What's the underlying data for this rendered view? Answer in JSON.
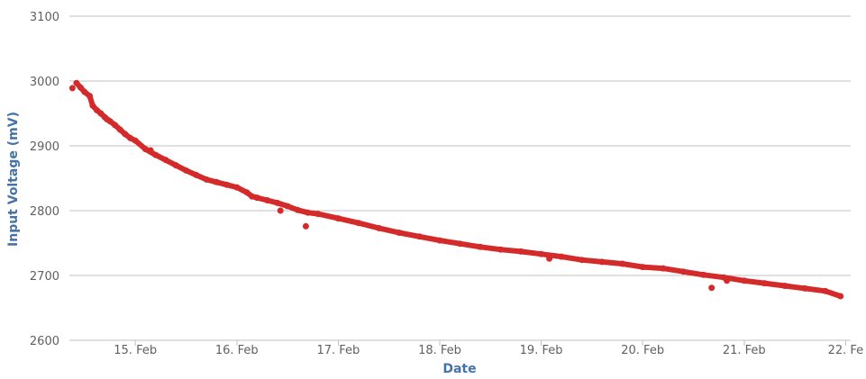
{
  "chart_data": {
    "type": "line",
    "title": "",
    "xlabel": "Date",
    "ylabel": "Input Voltage (mV)",
    "ylim": [
      2600,
      3100
    ],
    "y_ticks": [
      2600,
      2700,
      2800,
      2900,
      3000,
      3100
    ],
    "x_ticks": [
      {
        "day": 15,
        "label": "15. Feb"
      },
      {
        "day": 16,
        "label": "16. Feb"
      },
      {
        "day": 17,
        "label": "17. Feb"
      },
      {
        "day": 18,
        "label": "18. Feb"
      },
      {
        "day": 19,
        "label": "19. Feb"
      },
      {
        "day": 20,
        "label": "20. Feb"
      },
      {
        "day": 21,
        "label": "21. Feb"
      },
      {
        "day": 22,
        "label": "22. Fe"
      }
    ],
    "xlim_days": [
      14.35,
      22.05
    ],
    "grid": true,
    "colors": {
      "series": "#d42a2a",
      "grid": "#c0c0c0",
      "axis_title": "#4572A7",
      "tick_label": "#606060"
    },
    "series": [
      {
        "x_days": [
          14.42,
          14.46,
          14.5,
          14.55,
          14.58,
          14.62,
          14.66,
          14.7,
          14.75,
          14.8,
          14.85,
          14.9,
          14.95,
          15.0,
          15.1,
          15.2,
          15.3,
          15.4,
          15.5,
          15.6,
          15.7,
          15.8,
          15.9,
          16.0,
          16.1,
          16.15,
          16.2,
          16.3,
          16.4,
          16.5,
          16.6,
          16.7,
          16.8,
          17.0,
          17.2,
          17.4,
          17.6,
          17.8,
          18.0,
          18.2,
          18.4,
          18.6,
          18.8,
          19.0,
          19.2,
          19.4,
          19.6,
          19.8,
          20.0,
          20.2,
          20.4,
          20.6,
          20.8,
          21.0,
          21.2,
          21.4,
          21.6,
          21.8,
          21.95
        ],
        "y": [
          2997,
          2990,
          2983,
          2977,
          2962,
          2955,
          2950,
          2944,
          2938,
          2932,
          2925,
          2918,
          2912,
          2908,
          2895,
          2886,
          2878,
          2870,
          2862,
          2855,
          2848,
          2844,
          2840,
          2836,
          2828,
          2822,
          2820,
          2816,
          2812,
          2807,
          2801,
          2797,
          2795,
          2788,
          2781,
          2773,
          2766,
          2760,
          2754,
          2749,
          2744,
          2740,
          2737,
          2733,
          2729,
          2724,
          2721,
          2718,
          2713,
          2711,
          2706,
          2701,
          2697,
          2692,
          2688,
          2684,
          2680,
          2676,
          2668
        ]
      }
    ],
    "outliers": [
      {
        "x_day": 14.38,
        "y": 2989
      },
      {
        "x_day": 14.72,
        "y": 2941
      },
      {
        "x_day": 15.15,
        "y": 2893
      },
      {
        "x_day": 16.43,
        "y": 2800
      },
      {
        "x_day": 16.68,
        "y": 2776
      },
      {
        "x_day": 19.08,
        "y": 2726
      },
      {
        "x_day": 20.68,
        "y": 2681
      },
      {
        "x_day": 20.83,
        "y": 2692
      }
    ]
  }
}
